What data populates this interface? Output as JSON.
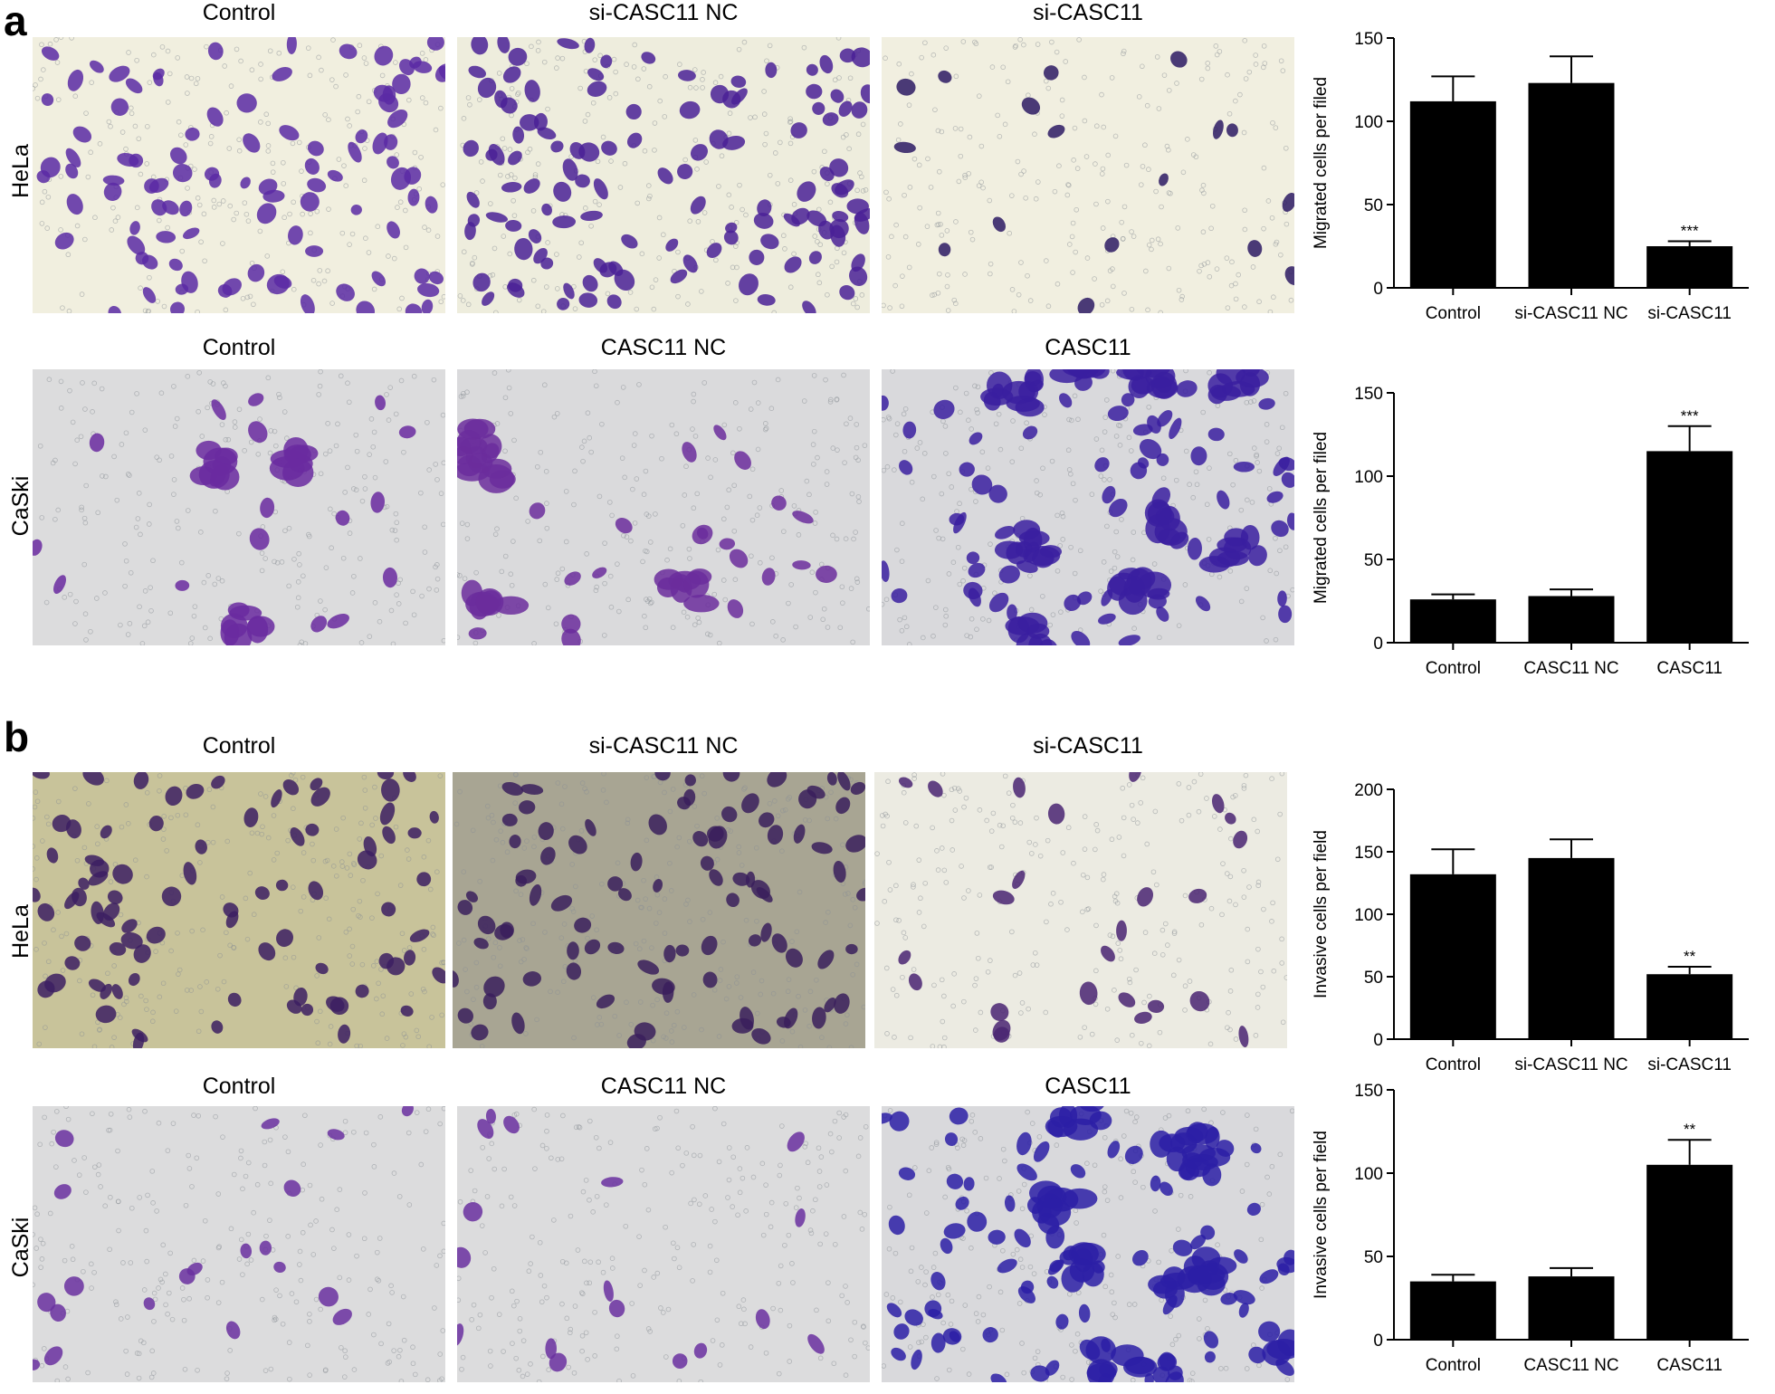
{
  "panels": [
    {
      "letter": "a",
      "rows": [
        {
          "cell_line": "HeLa",
          "columns": [
            "Control",
            "si-CASC11 NC",
            "si-CASC11"
          ],
          "image_styles": [
            {
              "bg": "#f1efdf",
              "cells": "#5b2aa5",
              "density": 0.7,
              "clusters": false
            },
            {
              "bg": "#eeeddd",
              "cells": "#4a2196",
              "density": 0.85,
              "clusters": false
            },
            {
              "bg": "#f1efe0",
              "cells": "#2d1a63",
              "density": 0.12,
              "clusters": false
            }
          ]
        },
        {
          "cell_line": "CaSki",
          "columns": [
            "Control",
            "CASC11 NC",
            "CASC11"
          ],
          "image_styles": [
            {
              "bg": "#dcdcdd",
              "cells": "#6a2aa0",
              "density": 0.12,
              "clusters": true
            },
            {
              "bg": "#dadadc",
              "cells": "#6b2d9c",
              "density": 0.16,
              "clusters": true
            },
            {
              "bg": "#d9d9dc",
              "cells": "#3a1fa0",
              "density": 0.55,
              "clusters": true
            }
          ]
        }
      ]
    },
    {
      "letter": "b",
      "rows": [
        {
          "cell_line": "HeLa",
          "columns": [
            "Control",
            "si-CASC11 NC",
            "si-CASC11"
          ],
          "image_styles": [
            {
              "bg": "#c8c39a",
              "cells": "#3c1f62",
              "density": 0.6,
              "clusters": false
            },
            {
              "bg": "#a8a593",
              "cells": "#3a1f5c",
              "density": 0.65,
              "clusters": false
            },
            {
              "bg": "#ecebe2",
              "cells": "#4a2472",
              "density": 0.18,
              "clusters": false
            }
          ]
        },
        {
          "cell_line": "CaSki",
          "columns": [
            "Control",
            "CASC11 NC",
            "CASC11"
          ],
          "image_styles": [
            {
              "bg": "#dcdcdd",
              "cells": "#6a30a0",
              "density": 0.14,
              "clusters": false
            },
            {
              "bg": "#dcdcdd",
              "cells": "#6a30a0",
              "density": 0.12,
              "clusters": false
            },
            {
              "bg": "#d9d9dc",
              "cells": "#2b1fa6",
              "density": 0.6,
              "clusters": true
            }
          ]
        }
      ]
    }
  ],
  "chart_data": [
    {
      "type": "bar",
      "panel": "a",
      "cell_line": "HeLa",
      "categories": [
        "Control",
        "si-CASC11 NC",
        "si-CASC11"
      ],
      "values": [
        112,
        123,
        25
      ],
      "errors": [
        15,
        16,
        3
      ],
      "significance": [
        "",
        "",
        "***"
      ],
      "ylabel": "Migrated cells per filed",
      "ylim": [
        0,
        150
      ],
      "yticks": [
        0,
        50,
        100,
        150
      ],
      "bar_color": "#000000"
    },
    {
      "type": "bar",
      "panel": "a",
      "cell_line": "CaSki",
      "categories": [
        "Control",
        "CASC11 NC",
        "CASC11"
      ],
      "values": [
        26,
        28,
        115
      ],
      "errors": [
        3,
        4,
        15
      ],
      "significance": [
        "",
        "",
        "***"
      ],
      "ylabel": "Migrated cells per filed",
      "ylim": [
        0,
        150
      ],
      "yticks": [
        0,
        50,
        100,
        150
      ],
      "bar_color": "#000000"
    },
    {
      "type": "bar",
      "panel": "b",
      "cell_line": "HeLa",
      "categories": [
        "Control",
        "si-CASC11 NC",
        "si-CASC11"
      ],
      "values": [
        132,
        145,
        52
      ],
      "errors": [
        20,
        15,
        6
      ],
      "significance": [
        "",
        "",
        "**"
      ],
      "ylabel": "Invasive cells per field",
      "ylim": [
        0,
        200
      ],
      "yticks": [
        0,
        50,
        100,
        150,
        200
      ],
      "bar_color": "#000000"
    },
    {
      "type": "bar",
      "panel": "b",
      "cell_line": "CaSki",
      "categories": [
        "Control",
        "CASC11 NC",
        "CASC11"
      ],
      "values": [
        35,
        38,
        105
      ],
      "errors": [
        4,
        5,
        15
      ],
      "significance": [
        "",
        "",
        "**"
      ],
      "ylabel": "Invasive cells per field",
      "ylim": [
        0,
        150
      ],
      "yticks": [
        0,
        50,
        100,
        150
      ],
      "bar_color": "#000000"
    }
  ]
}
